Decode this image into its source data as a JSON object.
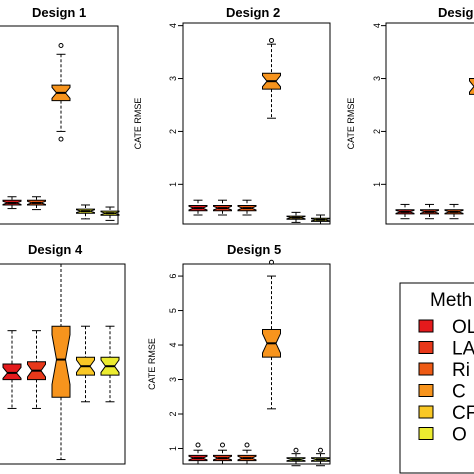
{
  "colors": {
    "OLS": "#e41a1c",
    "LASSO": "#e8381a",
    "Ridge": "#ee5a14",
    "CT": "#f7941d",
    "CF": "#f9c825",
    "OCF": "#ecec30"
  },
  "legend": {
    "title": "Meth",
    "items": [
      {
        "label": "OL",
        "color": "#e41a1c"
      },
      {
        "label": "LA",
        "color": "#e8381a"
      },
      {
        "label": "Ri",
        "color": "#ee5a14"
      },
      {
        "label": "C",
        "color": "#f7941d"
      },
      {
        "label": "CF",
        "color": "#f9c825"
      },
      {
        "label": "O",
        "color": "#ecec30"
      }
    ]
  },
  "chart_data": [
    {
      "type": "box",
      "title": "Design 1",
      "ylabel": "",
      "ylim": [
        0.35,
        4.2
      ],
      "yticks": [],
      "ytick_labels": [],
      "boxes": [
        {
          "color": "#e41a1c",
          "whislo": 0.65,
          "q1": 0.72,
          "med": 0.76,
          "q3": 0.81,
          "whishi": 0.88,
          "fliers": []
        },
        {
          "color": "#ee5a14",
          "whislo": 0.63,
          "q1": 0.72,
          "med": 0.76,
          "q3": 0.81,
          "whishi": 0.88,
          "fliers": []
        },
        {
          "color": "#f7941d",
          "whislo": 2.15,
          "q1": 2.75,
          "med": 2.9,
          "q3": 3.05,
          "whishi": 3.65,
          "fliers": [
            2.0,
            3.82
          ]
        },
        {
          "color": "#ecec30",
          "whislo": 0.45,
          "q1": 0.56,
          "med": 0.6,
          "q3": 0.64,
          "whishi": 0.72,
          "fliers": []
        },
        {
          "color": "#ecec30",
          "whislo": 0.42,
          "q1": 0.52,
          "med": 0.56,
          "q3": 0.6,
          "whishi": 0.68,
          "fliers": []
        }
      ]
    },
    {
      "type": "box",
      "title": "Design 2",
      "ylabel": "CATE RMSE",
      "ylim": [
        0.25,
        4.05
      ],
      "yticks": [
        1,
        2,
        3,
        4
      ],
      "ytick_labels": [
        "1",
        "2",
        "3",
        "4"
      ],
      "boxes": [
        {
          "color": "#e41a1c",
          "whislo": 0.42,
          "q1": 0.5,
          "med": 0.55,
          "q3": 0.6,
          "whishi": 0.7,
          "fliers": []
        },
        {
          "color": "#e8381a",
          "whislo": 0.42,
          "q1": 0.5,
          "med": 0.55,
          "q3": 0.6,
          "whishi": 0.7,
          "fliers": []
        },
        {
          "color": "#ee5a14",
          "whislo": 0.42,
          "q1": 0.5,
          "med": 0.55,
          "q3": 0.6,
          "whishi": 0.7,
          "fliers": []
        },
        {
          "color": "#f7941d",
          "whislo": 2.25,
          "q1": 2.8,
          "med": 2.95,
          "q3": 3.1,
          "whishi": 3.65,
          "fliers": [
            3.72
          ]
        },
        {
          "color": "#f9c825",
          "whislo": 0.28,
          "q1": 0.34,
          "med": 0.37,
          "q3": 0.4,
          "whishi": 0.47,
          "fliers": []
        },
        {
          "color": "#ecec30",
          "whislo": 0.25,
          "q1": 0.3,
          "med": 0.33,
          "q3": 0.36,
          "whishi": 0.42,
          "fliers": []
        }
      ]
    },
    {
      "type": "box",
      "title": "Desig",
      "ylabel": "CATE RMSE",
      "ylim": [
        0.25,
        4.05
      ],
      "yticks": [
        1,
        2,
        3,
        4
      ],
      "ytick_labels": [
        "1",
        "2",
        "3",
        "4"
      ],
      "boxes": [
        {
          "color": "#e41a1c",
          "whislo": 0.35,
          "q1": 0.44,
          "med": 0.48,
          "q3": 0.52,
          "whishi": 0.62,
          "fliers": []
        },
        {
          "color": "#e8381a",
          "whislo": 0.35,
          "q1": 0.44,
          "med": 0.48,
          "q3": 0.52,
          "whishi": 0.62,
          "fliers": []
        },
        {
          "color": "#ee5a14",
          "whislo": 0.35,
          "q1": 0.44,
          "med": 0.48,
          "q3": 0.52,
          "whishi": 0.62,
          "fliers": []
        },
        {
          "color": "#f7941d",
          "whislo": 2.3,
          "q1": 2.7,
          "med": 2.85,
          "q3": 3.0,
          "whishi": 3.55,
          "fliers": []
        }
      ]
    },
    {
      "type": "box",
      "title": "Design 4",
      "ylabel": "",
      "ylim": [
        0.1,
        1.0
      ],
      "yticks": [],
      "ytick_labels": [],
      "boxes": [
        {
          "color": "#e41a1c",
          "whislo": 0.35,
          "q1": 0.48,
          "med": 0.51,
          "q3": 0.55,
          "whishi": 0.7,
          "fliers": []
        },
        {
          "color": "#e8381a",
          "whislo": 0.35,
          "q1": 0.48,
          "med": 0.52,
          "q3": 0.56,
          "whishi": 0.7,
          "fliers": []
        },
        {
          "color": "#f7941d",
          "whislo": 0.12,
          "q1": 0.4,
          "med": 0.57,
          "q3": 0.72,
          "whishi": 1.0,
          "fliers": []
        },
        {
          "color": "#f9c825",
          "whislo": 0.38,
          "q1": 0.5,
          "med": 0.54,
          "q3": 0.58,
          "whishi": 0.72,
          "fliers": []
        },
        {
          "color": "#ecec30",
          "whislo": 0.38,
          "q1": 0.5,
          "med": 0.54,
          "q3": 0.58,
          "whishi": 0.72,
          "fliers": []
        }
      ]
    },
    {
      "type": "box",
      "title": "Design 5",
      "ylabel": "CATE RMSE",
      "ylim": [
        0.55,
        6.35
      ],
      "yticks": [
        1,
        2,
        3,
        4,
        5,
        6
      ],
      "ytick_labels": [
        "1",
        "2",
        "3",
        "4",
        "5",
        "6"
      ],
      "boxes": [
        {
          "color": "#e41a1c",
          "whislo": 0.55,
          "q1": 0.65,
          "med": 0.72,
          "q3": 0.8,
          "whishi": 0.95,
          "fliers": [
            1.1
          ]
        },
        {
          "color": "#e8381a",
          "whislo": 0.55,
          "q1": 0.65,
          "med": 0.72,
          "q3": 0.8,
          "whishi": 0.95,
          "fliers": [
            1.1
          ]
        },
        {
          "color": "#ee5a14",
          "whislo": 0.55,
          "q1": 0.65,
          "med": 0.72,
          "q3": 0.8,
          "whishi": 0.95,
          "fliers": [
            1.1
          ]
        },
        {
          "color": "#f7941d",
          "whislo": 2.15,
          "q1": 3.65,
          "med": 4.05,
          "q3": 4.45,
          "whishi": 6.0,
          "fliers": [
            6.4
          ]
        },
        {
          "color": "#94b83a",
          "whislo": 0.5,
          "q1": 0.63,
          "med": 0.68,
          "q3": 0.73,
          "whishi": 0.85,
          "fliers": [
            0.95
          ]
        },
        {
          "color": "#c8d94a",
          "whislo": 0.5,
          "q1": 0.63,
          "med": 0.68,
          "q3": 0.73,
          "whishi": 0.85,
          "fliers": [
            0.95
          ]
        }
      ]
    }
  ]
}
